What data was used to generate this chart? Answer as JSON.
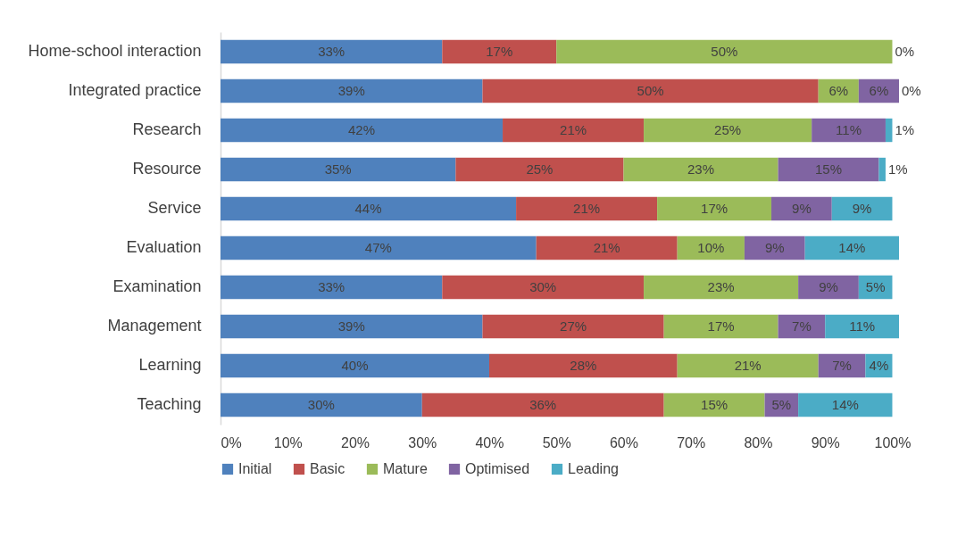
{
  "chart_data": {
    "type": "bar",
    "orientation": "horizontal",
    "stacked": true,
    "categories": [
      "Home-school interaction",
      "Integrated practice",
      "Research",
      "Resource",
      "Service",
      "Evaluation",
      "Examination",
      "Management",
      "Learning",
      "Teaching"
    ],
    "series": [
      {
        "name": "Initial",
        "color": "#4f81bd",
        "values": [
          33,
          39,
          42,
          35,
          44,
          47,
          33,
          39,
          40,
          30
        ],
        "value_labels": [
          "33%",
          "39%",
          "42%",
          "35%",
          "44%",
          "47%",
          "33%",
          "39%",
          "40%",
          "30%"
        ]
      },
      {
        "name": "Basic",
        "color": "#c0504d",
        "values": [
          17,
          50,
          21,
          25,
          21,
          21,
          30,
          27,
          28,
          36
        ],
        "value_labels": [
          "17%",
          "50%",
          "21%",
          "25%",
          "21%",
          "21%",
          "30%",
          "27%",
          "28%",
          "36%"
        ]
      },
      {
        "name": "Mature",
        "color": "#9bbb59",
        "values": [
          50,
          6,
          25,
          23,
          17,
          10,
          23,
          17,
          21,
          15
        ],
        "value_labels": [
          "50%",
          "6%",
          "25%",
          "23%",
          "17%",
          "10%",
          "23%",
          "17%",
          "21%",
          "15%"
        ]
      },
      {
        "name": "Optimised",
        "color": "#8064a2",
        "values": [
          null,
          6,
          11,
          15,
          9,
          9,
          9,
          7,
          7,
          5
        ],
        "value_labels": [
          null,
          "6%",
          "11%",
          "15%",
          "9%",
          "9%",
          "9%",
          "7%",
          "7%",
          "5%"
        ]
      },
      {
        "name": "Leading",
        "color": "#4bacc6",
        "values": [
          0,
          0,
          1,
          1,
          9,
          14,
          5,
          11,
          4,
          14
        ],
        "value_labels": [
          "0%",
          "0%",
          "1%",
          "1%",
          "9%",
          "14%",
          "5%",
          "11%",
          "4%",
          "14%"
        ]
      }
    ],
    "xlim": [
      0,
      101
    ],
    "xticks": [
      {
        "value": 0,
        "label": "0%"
      },
      {
        "value": 10,
        "label": "10%"
      },
      {
        "value": 20,
        "label": "20%"
      },
      {
        "value": 30,
        "label": "30%"
      },
      {
        "value": 40,
        "label": "40%"
      },
      {
        "value": 50,
        "label": "50%"
      },
      {
        "value": 60,
        "label": "60%"
      },
      {
        "value": 70,
        "label": "70%"
      },
      {
        "value": 80,
        "label": "80%"
      },
      {
        "value": 90,
        "label": "90%"
      },
      {
        "value": 100,
        "label": "100%"
      }
    ],
    "grid": false,
    "legend": "bottom"
  }
}
